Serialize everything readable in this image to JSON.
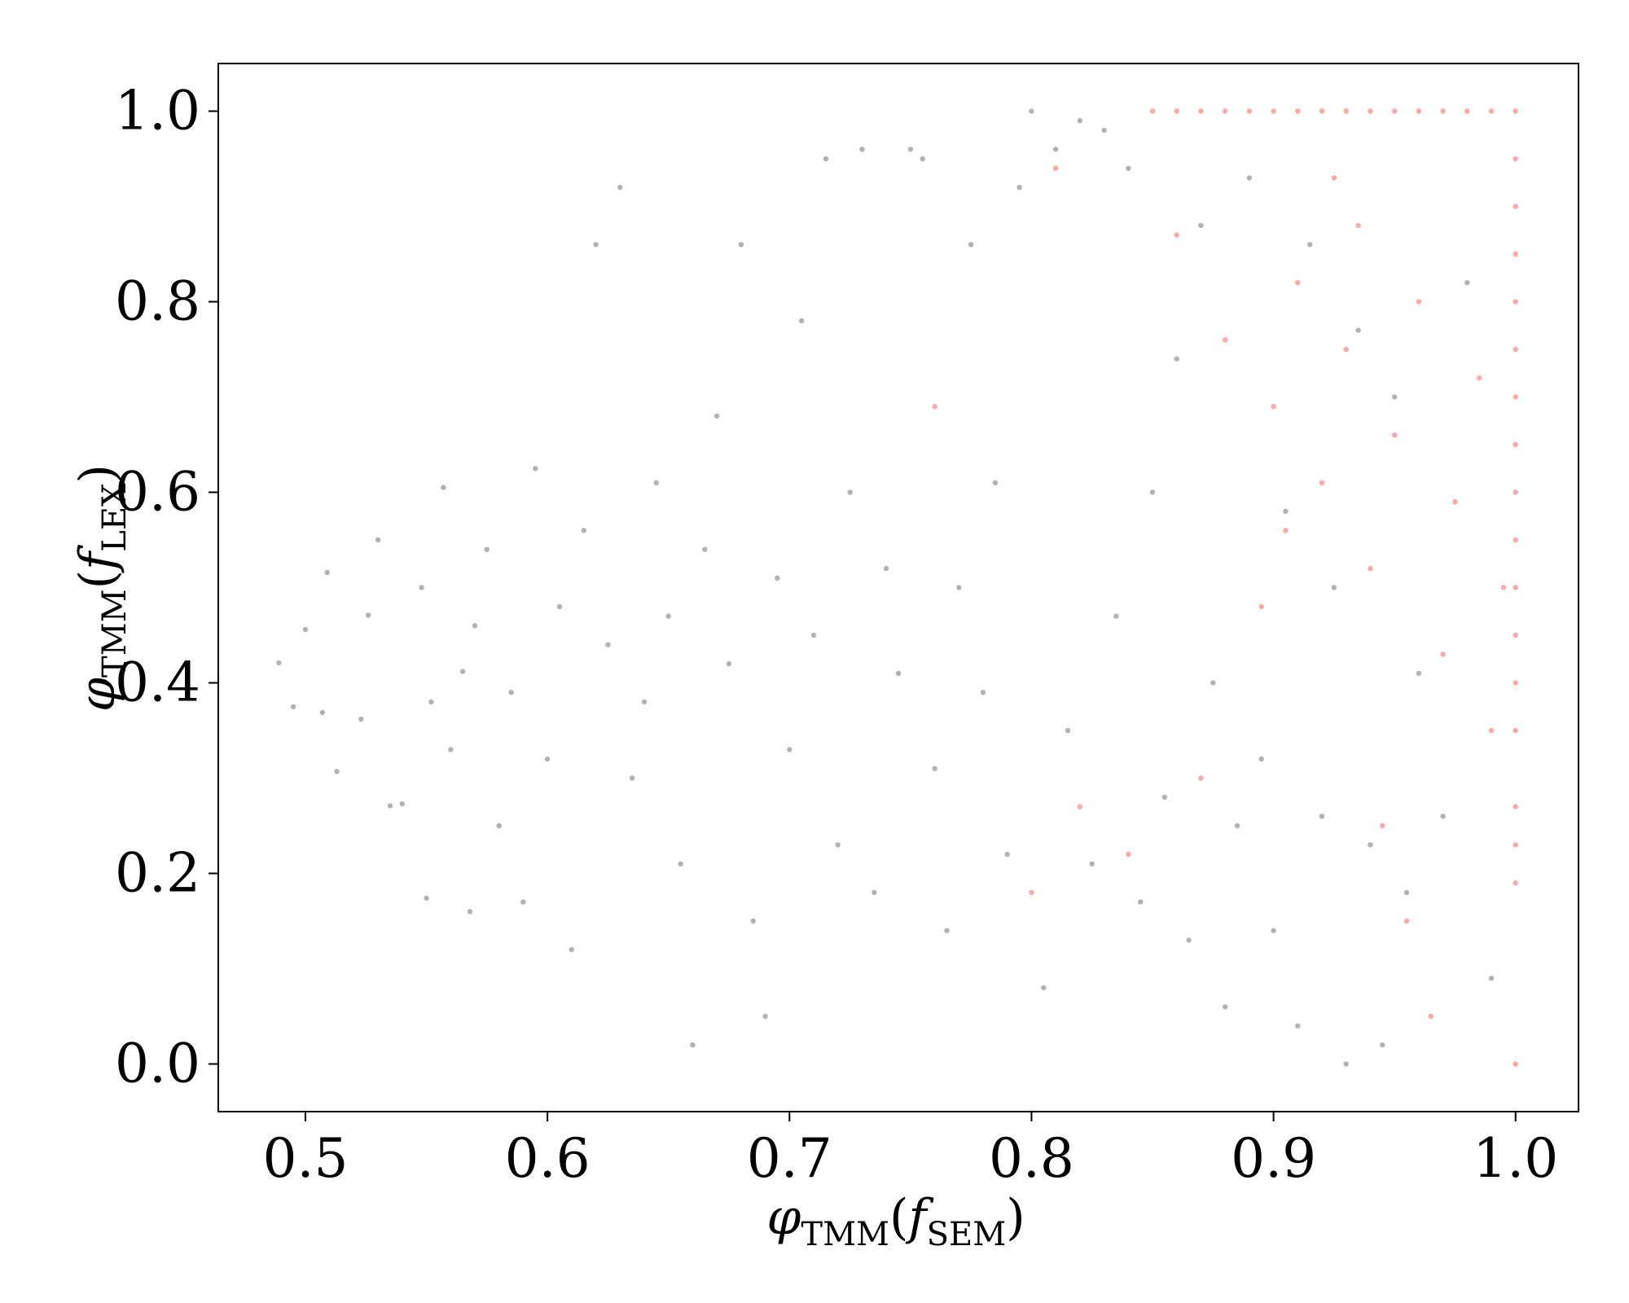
{
  "chart_data": {
    "type": "scatter",
    "title": "",
    "xlabel": {
      "symbol": "φ",
      "subscript": "TMM",
      "open": "(",
      "var": "f",
      "var_subscript": "SEM",
      "close": ")"
    },
    "ylabel": {
      "symbol": "φ",
      "subscript": "TMM",
      "open": "(",
      "var": "f",
      "var_subscript": "LEX",
      "close": ")"
    },
    "xlim": [
      0.464,
      1.026
    ],
    "ylim": [
      -0.05,
      1.05
    ],
    "xticks": [
      0.5,
      0.6,
      0.7,
      0.8,
      0.9,
      1.0
    ],
    "yticks": [
      0.0,
      0.2,
      0.4,
      0.6,
      0.8,
      1.0
    ],
    "xtick_labels": [
      "0.5",
      "0.6",
      "0.7",
      "0.8",
      "0.9",
      "1.0"
    ],
    "ytick_labels": [
      "0.0",
      "0.2",
      "0.4",
      "0.6",
      "0.8",
      "1.0"
    ],
    "grid": false,
    "legend": "none",
    "series": [
      {
        "color": "#000000",
        "opacity": 0.3,
        "values_note_free": true,
        "points": [
          [
            0.489,
            0.421
          ],
          [
            0.495,
            0.375
          ],
          [
            0.5,
            0.456
          ],
          [
            0.507,
            0.369
          ],
          [
            0.509,
            0.516
          ],
          [
            0.513,
            0.307
          ],
          [
            0.523,
            0.362
          ],
          [
            0.526,
            0.471
          ],
          [
            0.53,
            0.55
          ],
          [
            0.535,
            0.271
          ],
          [
            0.54,
            0.273
          ],
          [
            0.548,
            0.5
          ],
          [
            0.55,
            0.174
          ],
          [
            0.552,
            0.38
          ],
          [
            0.557,
            0.605
          ],
          [
            0.56,
            0.33
          ],
          [
            0.565,
            0.412
          ],
          [
            0.568,
            0.16
          ],
          [
            0.57,
            0.46
          ],
          [
            0.575,
            0.54
          ],
          [
            0.58,
            0.25
          ],
          [
            0.585,
            0.39
          ],
          [
            0.59,
            0.17
          ],
          [
            0.595,
            0.625
          ],
          [
            0.6,
            0.32
          ],
          [
            0.605,
            0.48
          ],
          [
            0.61,
            0.12
          ],
          [
            0.615,
            0.56
          ],
          [
            0.62,
            0.86
          ],
          [
            0.625,
            0.44
          ],
          [
            0.63,
            0.92
          ],
          [
            0.635,
            0.3
          ],
          [
            0.64,
            0.38
          ],
          [
            0.645,
            0.61
          ],
          [
            0.65,
            0.47
          ],
          [
            0.655,
            0.21
          ],
          [
            0.66,
            0.02
          ],
          [
            0.665,
            0.54
          ],
          [
            0.67,
            0.68
          ],
          [
            0.675,
            0.42
          ],
          [
            0.68,
            0.86
          ],
          [
            0.685,
            0.15
          ],
          [
            0.69,
            0.05
          ],
          [
            0.695,
            0.51
          ],
          [
            0.7,
            0.33
          ],
          [
            0.705,
            0.78
          ],
          [
            0.71,
            0.45
          ],
          [
            0.715,
            0.95
          ],
          [
            0.72,
            0.23
          ],
          [
            0.725,
            0.6
          ],
          [
            0.73,
            0.96
          ],
          [
            0.735,
            0.18
          ],
          [
            0.74,
            0.52
          ],
          [
            0.745,
            0.41
          ],
          [
            0.75,
            0.96
          ],
          [
            0.755,
            0.95
          ],
          [
            0.76,
            0.31
          ],
          [
            0.765,
            0.14
          ],
          [
            0.77,
            0.5
          ],
          [
            0.775,
            0.86
          ],
          [
            0.78,
            0.39
          ],
          [
            0.785,
            0.61
          ],
          [
            0.79,
            0.22
          ],
          [
            0.795,
            0.92
          ],
          [
            0.8,
            1.0
          ],
          [
            0.805,
            0.08
          ],
          [
            0.81,
            0.96
          ],
          [
            0.815,
            0.35
          ],
          [
            0.82,
            0.99
          ],
          [
            0.825,
            0.21
          ],
          [
            0.83,
            0.98
          ],
          [
            0.835,
            0.47
          ],
          [
            0.84,
            0.94
          ],
          [
            0.845,
            0.17
          ],
          [
            0.85,
            0.6
          ],
          [
            0.855,
            0.28
          ],
          [
            0.86,
            0.74
          ],
          [
            0.865,
            0.13
          ],
          [
            0.87,
            0.88
          ],
          [
            0.875,
            0.4
          ],
          [
            0.88,
            0.06
          ],
          [
            0.885,
            0.25
          ],
          [
            0.89,
            0.93
          ],
          [
            0.895,
            0.32
          ],
          [
            0.9,
            0.14
          ],
          [
            0.905,
            0.58
          ],
          [
            0.91,
            0.04
          ],
          [
            0.915,
            0.86
          ],
          [
            0.92,
            0.26
          ],
          [
            0.925,
            0.5
          ],
          [
            0.93,
            0.0
          ],
          [
            0.935,
            0.77
          ],
          [
            0.94,
            0.23
          ],
          [
            0.945,
            0.02
          ],
          [
            0.95,
            0.7
          ],
          [
            0.955,
            0.18
          ],
          [
            0.96,
            0.41
          ],
          [
            0.97,
            0.26
          ],
          [
            0.98,
            0.82
          ],
          [
            0.99,
            0.09
          ]
        ]
      },
      {
        "color": "#ff0000",
        "opacity": 0.35,
        "points": [
          [
            0.85,
            1.0
          ],
          [
            0.86,
            1.0
          ],
          [
            0.87,
            1.0
          ],
          [
            0.88,
            1.0
          ],
          [
            0.89,
            1.0
          ],
          [
            0.9,
            1.0
          ],
          [
            0.91,
            1.0
          ],
          [
            0.92,
            1.0
          ],
          [
            0.93,
            1.0
          ],
          [
            0.94,
            1.0
          ],
          [
            0.95,
            1.0
          ],
          [
            0.96,
            1.0
          ],
          [
            0.97,
            1.0
          ],
          [
            0.98,
            1.0
          ],
          [
            0.99,
            1.0
          ],
          [
            1.0,
            1.0
          ],
          [
            1.0,
            0.95
          ],
          [
            1.0,
            0.9
          ],
          [
            1.0,
            0.85
          ],
          [
            1.0,
            0.8
          ],
          [
            1.0,
            0.75
          ],
          [
            1.0,
            0.7
          ],
          [
            1.0,
            0.65
          ],
          [
            1.0,
            0.6
          ],
          [
            1.0,
            0.55
          ],
          [
            1.0,
            0.5
          ],
          [
            1.0,
            0.45
          ],
          [
            1.0,
            0.4
          ],
          [
            1.0,
            0.35
          ],
          [
            1.0,
            0.27
          ],
          [
            1.0,
            0.23
          ],
          [
            1.0,
            0.19
          ],
          [
            1.0,
            0.0
          ],
          [
            0.81,
            0.94
          ],
          [
            0.86,
            0.87
          ],
          [
            0.88,
            0.76
          ],
          [
            0.9,
            0.69
          ],
          [
            0.91,
            0.82
          ],
          [
            0.92,
            0.61
          ],
          [
            0.93,
            0.75
          ],
          [
            0.94,
            0.52
          ],
          [
            0.95,
            0.66
          ],
          [
            0.96,
            0.8
          ],
          [
            0.97,
            0.43
          ],
          [
            0.975,
            0.59
          ],
          [
            0.985,
            0.72
          ],
          [
            0.99,
            0.35
          ],
          [
            0.995,
            0.5
          ],
          [
            0.945,
            0.25
          ],
          [
            0.955,
            0.15
          ],
          [
            0.965,
            0.05
          ],
          [
            0.935,
            0.88
          ],
          [
            0.925,
            0.93
          ],
          [
            0.905,
            0.56
          ],
          [
            0.895,
            0.48
          ],
          [
            0.87,
            0.3
          ],
          [
            0.84,
            0.22
          ],
          [
            0.82,
            0.27
          ],
          [
            0.8,
            0.18
          ],
          [
            0.76,
            0.69
          ]
        ]
      }
    ]
  }
}
